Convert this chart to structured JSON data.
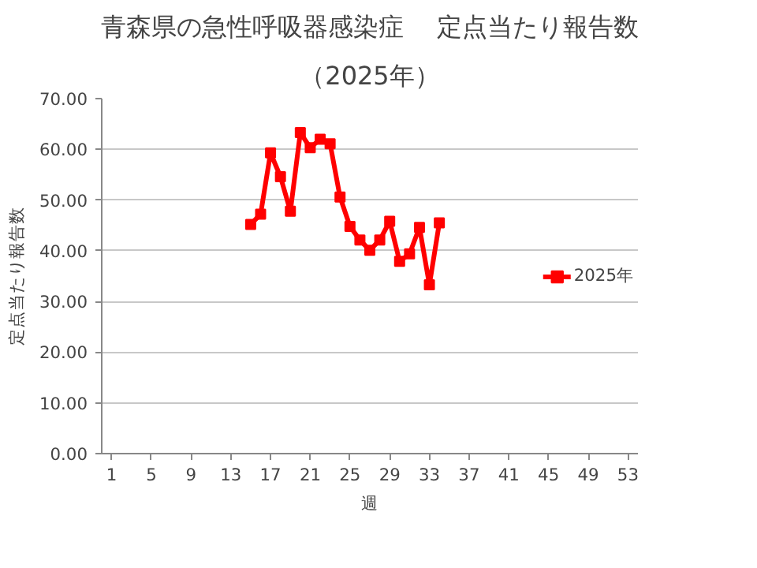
{
  "chart_data": {
    "type": "line",
    "title": "青森県の急性呼吸器感染症　 定点当たり報告数",
    "subtitle": "（2025年）",
    "xlabel": "週",
    "ylabel": "定点当たり報告数",
    "x": [
      15,
      16,
      17,
      18,
      19,
      20,
      21,
      22,
      23,
      24,
      25,
      26,
      27,
      28,
      29,
      30,
      31,
      32,
      33,
      34
    ],
    "series": [
      {
        "name": "2025年",
        "color": "#ff0000",
        "values": [
          45.2,
          47.2,
          59.3,
          54.6,
          47.8,
          63.3,
          60.3,
          62.0,
          61.1,
          50.6,
          44.8,
          42.1,
          40.1,
          42.1,
          45.8,
          37.9,
          39.4,
          44.6,
          33.3,
          45.5
        ]
      }
    ],
    "xlim": [
      0,
      54
    ],
    "xticks": [
      1,
      5,
      9,
      13,
      17,
      21,
      25,
      29,
      33,
      37,
      41,
      45,
      49,
      53
    ],
    "ylim": [
      0,
      70
    ],
    "yticks": [
      {
        "value": 0,
        "label": "0.00"
      },
      {
        "value": 10,
        "label": "10.00"
      },
      {
        "value": 20,
        "label": "20.00"
      },
      {
        "value": 30,
        "label": "30.00"
      },
      {
        "value": 40,
        "label": "40.00"
      },
      {
        "value": 50,
        "label": "50.00"
      },
      {
        "value": 60,
        "label": "60.00"
      },
      {
        "value": 70,
        "label": "70.00"
      }
    ],
    "grid": "y",
    "legend": "right",
    "marker": "square",
    "line_style": "solid"
  }
}
